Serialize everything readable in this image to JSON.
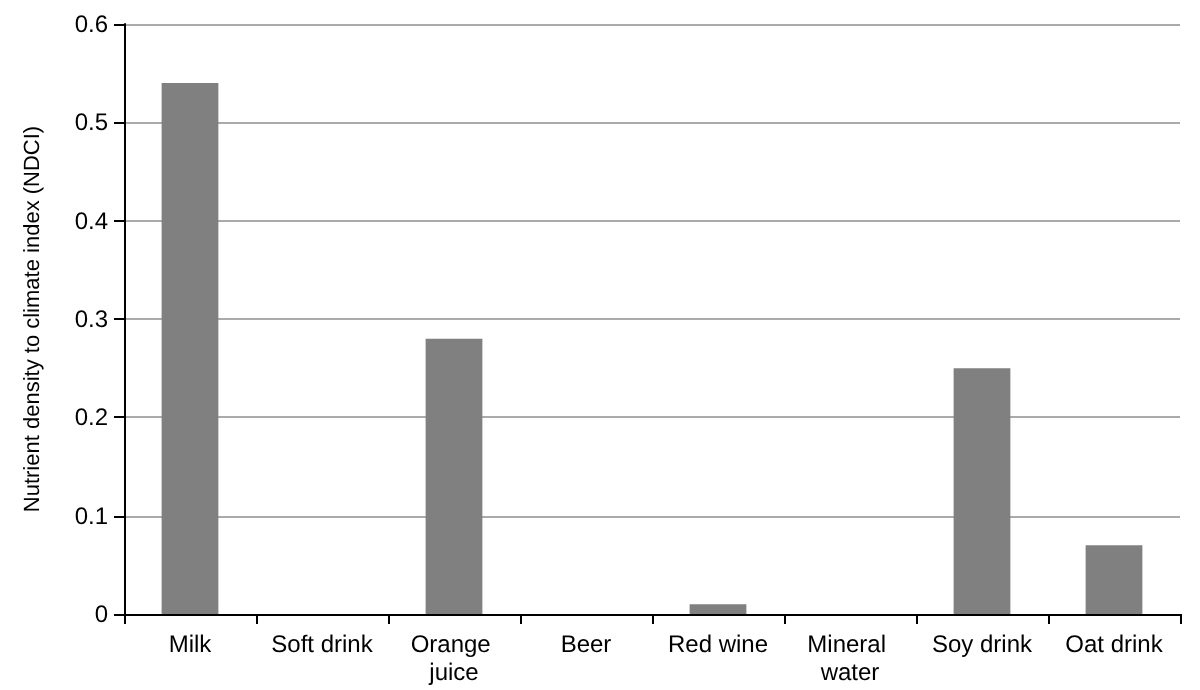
{
  "chart_data": {
    "type": "bar",
    "ylabel": "Nutrient density to climate index (NDCI)",
    "categories": [
      "Milk",
      "Soft drink",
      "Orange juice",
      "Beer",
      "Red wine",
      "Mineral water",
      "Soy drink",
      "Oat drink"
    ],
    "values": [
      0.54,
      0,
      0.28,
      0,
      0.01,
      0,
      0.25,
      0.07
    ],
    "color": "#808080",
    "ylim": [
      0,
      0.6
    ],
    "yticks": [
      0,
      0.1,
      0.2,
      0.3,
      0.4,
      0.5,
      0.6
    ],
    "grid": "y"
  }
}
